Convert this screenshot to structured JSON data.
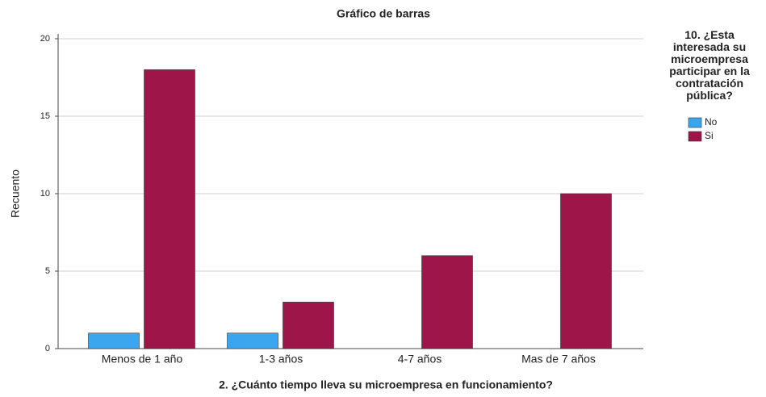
{
  "chart_data": {
    "type": "bar",
    "title": "Gráfico de barras",
    "x_label": "2. ¿Cuánto tiempo lleva su microempresa en funcionamiento?",
    "y_label": "Recuento",
    "legend_title": "10. ¿Esta interesada su microempresa participar en la contratación pública?",
    "categories": [
      "Menos de 1 año",
      "1-3 años",
      "4-7 años",
      "Mas de 7 años"
    ],
    "series": [
      {
        "name": "No",
        "color": "#3aa6f0",
        "values": [
          1,
          1,
          0,
          0
        ]
      },
      {
        "name": "Si",
        "color": "#9e1549",
        "values": [
          18,
          3,
          6,
          10
        ]
      }
    ],
    "ylim": [
      0,
      20
    ],
    "yticks": [
      0,
      5,
      10,
      15,
      20
    ],
    "grid": true,
    "legend": "right"
  }
}
